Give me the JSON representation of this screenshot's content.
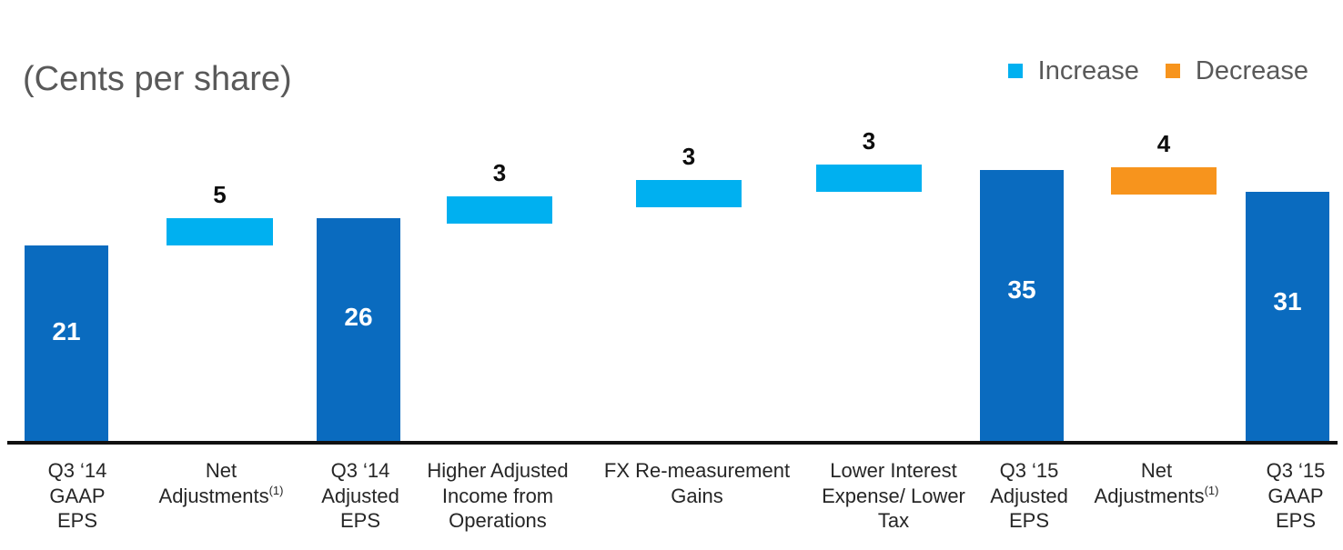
{
  "chart_data": {
    "type": "bar",
    "subtype": "waterfall",
    "ylabel": "(Cents per share)",
    "categories": [
      "Q3 ‘14\nGAAP\nEPS",
      "Net\nAdjustments",
      "Q3 ‘14\nAdjusted\nEPS",
      "Higher Adjusted\nIncome from\nOperations",
      "FX Re-measurement\nGains",
      "Lower Interest\nExpense/ Lower\nTax",
      "Q3 ‘15\nAdjusted\nEPS",
      "Net\nAdjustments",
      "Q3 ‘15\nGAAP\nEPS"
    ],
    "category_footnotes": [
      null,
      "(1)",
      null,
      null,
      null,
      null,
      null,
      "(1)",
      null
    ],
    "series": [
      {
        "name": "Increase",
        "color": "#00B0F0",
        "values": [
          null,
          5,
          null,
          3,
          3,
          3,
          null,
          null,
          null
        ]
      },
      {
        "name": "Decrease",
        "color": "#F7941D",
        "values": [
          null,
          null,
          null,
          null,
          null,
          null,
          null,
          4,
          null
        ]
      },
      {
        "color": "#0A6BBF",
        "values": [
          21,
          null,
          26,
          null,
          null,
          null,
          35,
          null,
          31
        ]
      }
    ],
    "legend": "top-right",
    "grid": false
  }
}
